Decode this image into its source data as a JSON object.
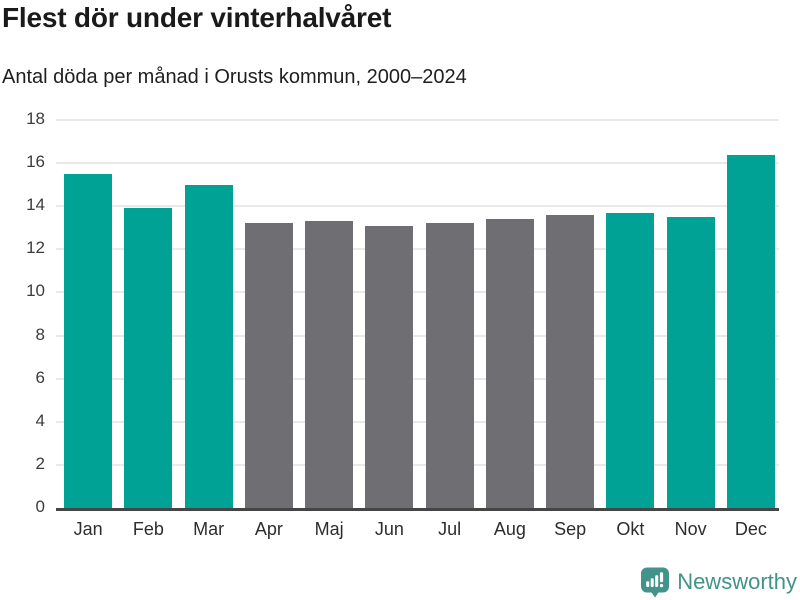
{
  "header": {
    "title": "Flest dör under vinterhalvåret",
    "subtitle": "Antal döda per månad i Orusts kommun, 2000–2024"
  },
  "chart_data": {
    "type": "bar",
    "title": "Flest dör under vinterhalvåret",
    "subtitle": "Antal döda per månad i Orusts kommun, 2000–2024",
    "categories": [
      "Jan",
      "Feb",
      "Mar",
      "Apr",
      "Maj",
      "Jun",
      "Jul",
      "Aug",
      "Sep",
      "Okt",
      "Nov",
      "Dec"
    ],
    "values": [
      15.5,
      13.9,
      15.0,
      13.2,
      13.3,
      13.1,
      13.2,
      13.4,
      13.6,
      13.7,
      13.5,
      16.4
    ],
    "highlighted": [
      true,
      true,
      true,
      false,
      false,
      false,
      false,
      false,
      false,
      true,
      true,
      true
    ],
    "xlabel": "",
    "ylabel": "",
    "ylim": [
      0,
      18
    ],
    "ytick_step": 2,
    "grid": true,
    "legend": "none",
    "colors": {
      "highlight": "#00a296",
      "muted": "#6e6e73",
      "gridline": "#e9e9e9",
      "axis_line": "#454545"
    }
  },
  "footer": {
    "brand": "Newsworthy",
    "brand_color": "#41938b",
    "logo_icon": "newsworthy-speech-bubble-bar-chart"
  }
}
